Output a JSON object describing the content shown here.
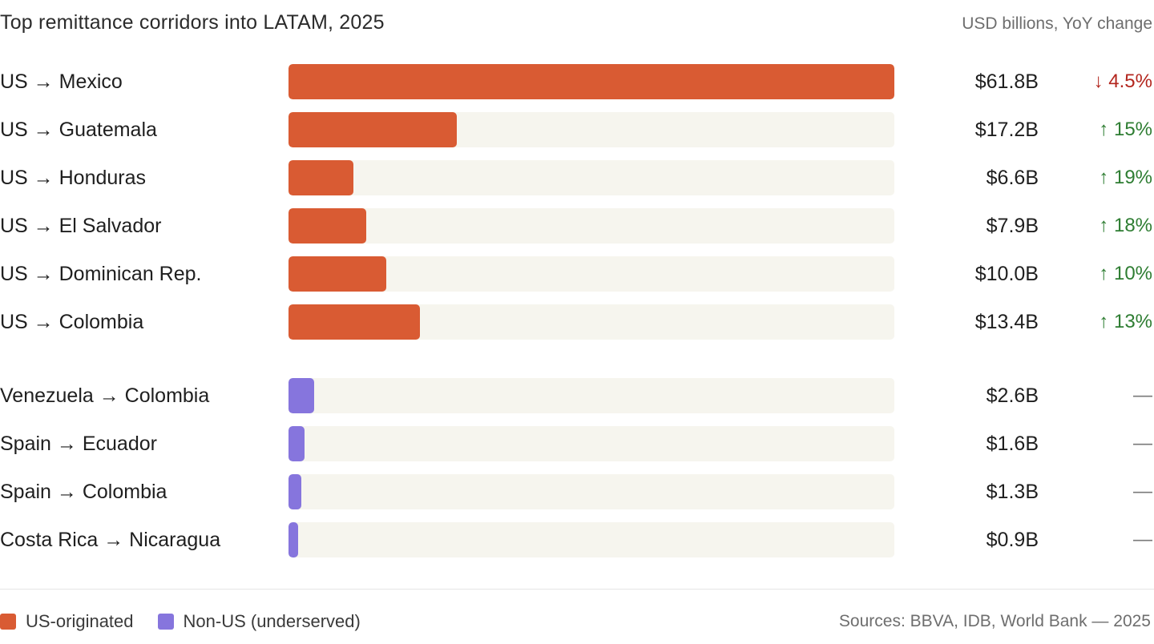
{
  "header": {
    "title": "Top remittance corridors into LATAM, 2025",
    "subtitle": "USD billions, YoY change"
  },
  "colors": {
    "us": "#d95b33",
    "non_us": "#8675dd",
    "track": "#f6f5ee",
    "up": "#2e7d32",
    "down": "#b3261e",
    "neutral": "#7a7a7a"
  },
  "chart_data": {
    "type": "bar",
    "orientation": "horizontal",
    "title": "Top remittance corridors into LATAM, 2025",
    "subtitle": "USD billions, YoY change",
    "xlim": [
      0,
      61.8
    ],
    "categories": [
      "US → Mexico",
      "US → Guatemala",
      "US → Honduras",
      "US → El Salvador",
      "US → Dominican Rep.",
      "US → Colombia",
      "Venezuela → Colombia",
      "Spain → Ecuador",
      "Spain → Colombia",
      "Costa Rica → Nicaragua"
    ],
    "values": [
      61.8,
      17.2,
      6.6,
      7.9,
      10.0,
      13.4,
      2.6,
      1.6,
      1.3,
      0.9
    ],
    "groups": [
      "us",
      "us",
      "us",
      "us",
      "us",
      "us",
      "non_us",
      "non_us",
      "non_us",
      "non_us"
    ],
    "value_labels": [
      "$61.8B",
      "$17.2B",
      "$6.6B",
      "$7.9B",
      "$10.0B",
      "$13.4B",
      "$2.6B",
      "$1.6B",
      "$1.3B",
      "$0.9B"
    ],
    "yoy_labels": [
      "↓ 4.5%",
      "↑ 15%",
      "↑ 19%",
      "↑ 18%",
      "↑ 10%",
      "↑ 13%",
      "—",
      "—",
      "—",
      "—"
    ],
    "yoy_direction": [
      "down",
      "up",
      "up",
      "up",
      "up",
      "up",
      "none",
      "none",
      "none",
      "none"
    ],
    "legend": [
      {
        "key": "us",
        "label": "US-originated"
      },
      {
        "key": "non_us",
        "label": "Non-US (underserved)"
      }
    ],
    "legend_position": "bottom-left"
  },
  "footer": {
    "sources": "Sources: BBVA, IDB, World Bank — 2025"
  }
}
